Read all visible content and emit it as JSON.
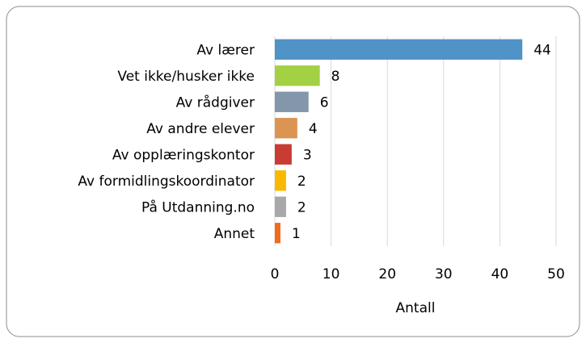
{
  "chart_data": {
    "type": "bar",
    "orientation": "horizontal",
    "categories": [
      "Av lærer",
      "Vet ikke/husker ikke",
      "Av rådgiver",
      "Av andre elever",
      "Av opplæringskontor",
      "Av formidlingskoordinator",
      "På Utdanning.no",
      "Annet"
    ],
    "values": [
      44,
      8,
      6,
      4,
      3,
      2,
      2,
      1
    ],
    "colors": [
      "#4f93c7",
      "#a4d143",
      "#8497aa",
      "#dc9452",
      "#c83c34",
      "#fbb800",
      "#a8a8a8",
      "#f26a1b"
    ],
    "xlabel": "Antall",
    "xlim": [
      0,
      50
    ],
    "xticks": [
      0,
      10,
      20,
      30,
      40,
      50
    ],
    "grid": true
  }
}
